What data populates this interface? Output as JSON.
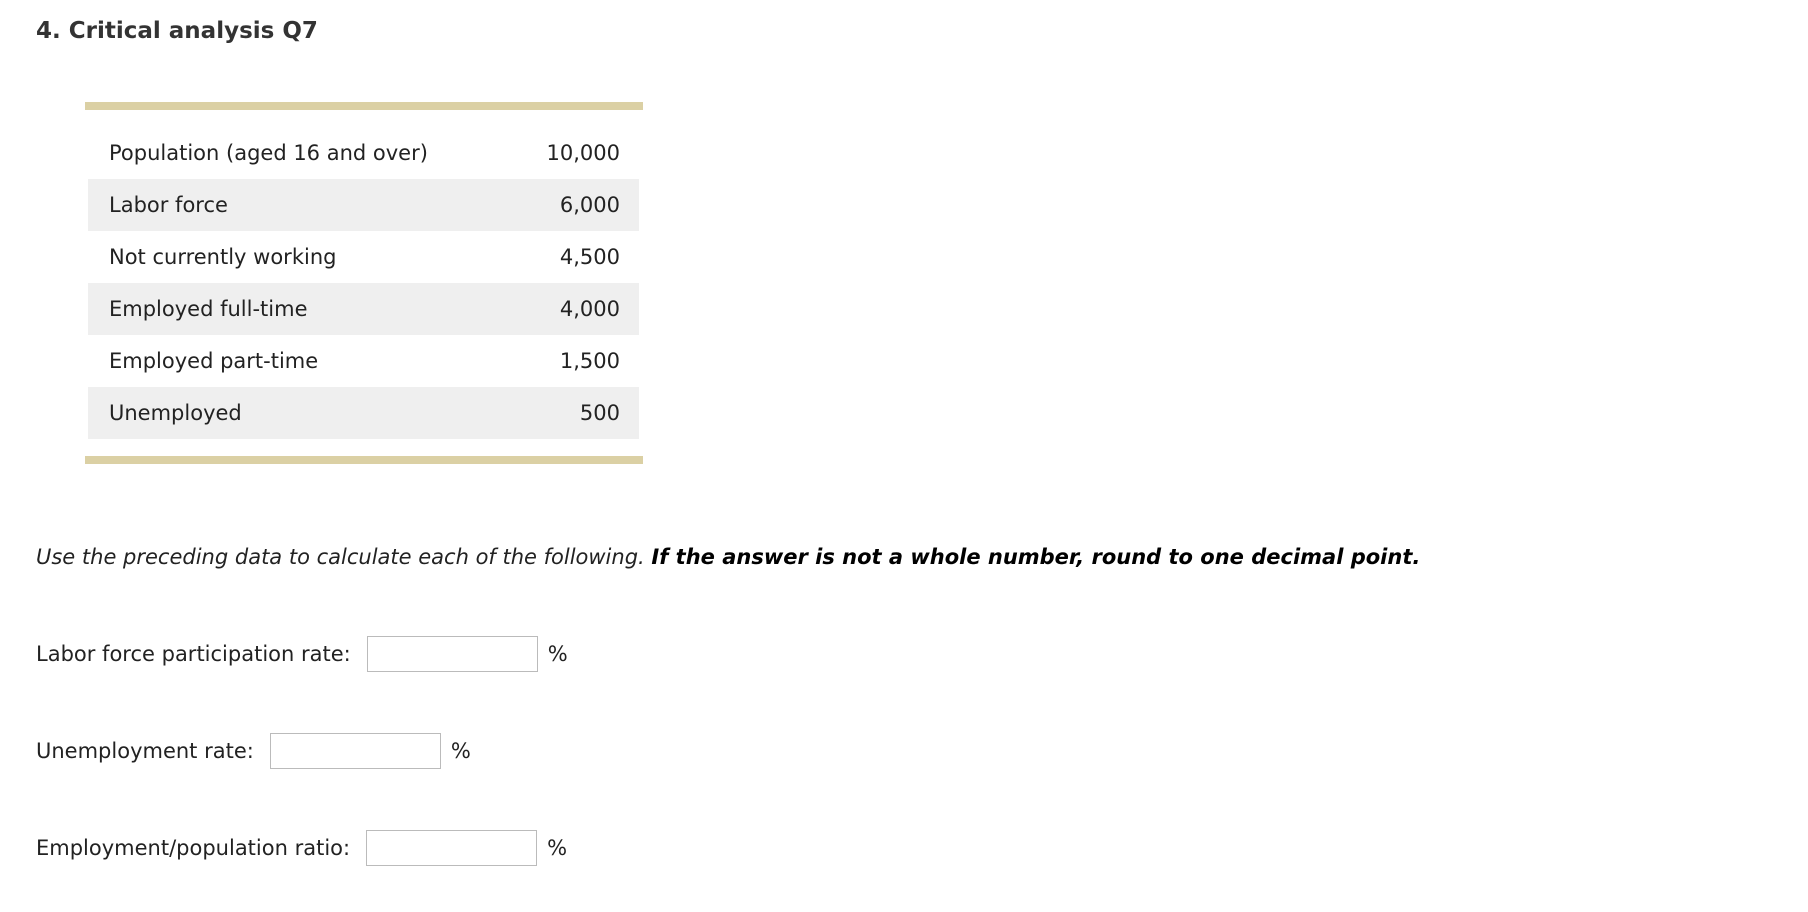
{
  "title": "4. Critical analysis Q7",
  "table": [
    {
      "label": "Population (aged 16 and over)",
      "value": "10,000"
    },
    {
      "label": "Labor force",
      "value": "6,000"
    },
    {
      "label": "Not currently working",
      "value": "4,500"
    },
    {
      "label": "Employed full-time",
      "value": "4,000"
    },
    {
      "label": "Employed part-time",
      "value": "1,500"
    },
    {
      "label": "Unemployed",
      "value": "500"
    }
  ],
  "instructions": {
    "italic": "Use the preceding data to calculate each of the following.",
    "bold": "If the answer is not a whole number, round to one decimal point."
  },
  "questions": [
    {
      "label": "Labor force participation rate:",
      "value": "",
      "unit": "%"
    },
    {
      "label": "Unemployment rate:",
      "value": "",
      "unit": "%"
    },
    {
      "label": "Employment/population ratio:",
      "value": "",
      "unit": "%"
    }
  ],
  "colors": {
    "table_rule": "#dbd0a4",
    "alt_row": "#efefef"
  }
}
